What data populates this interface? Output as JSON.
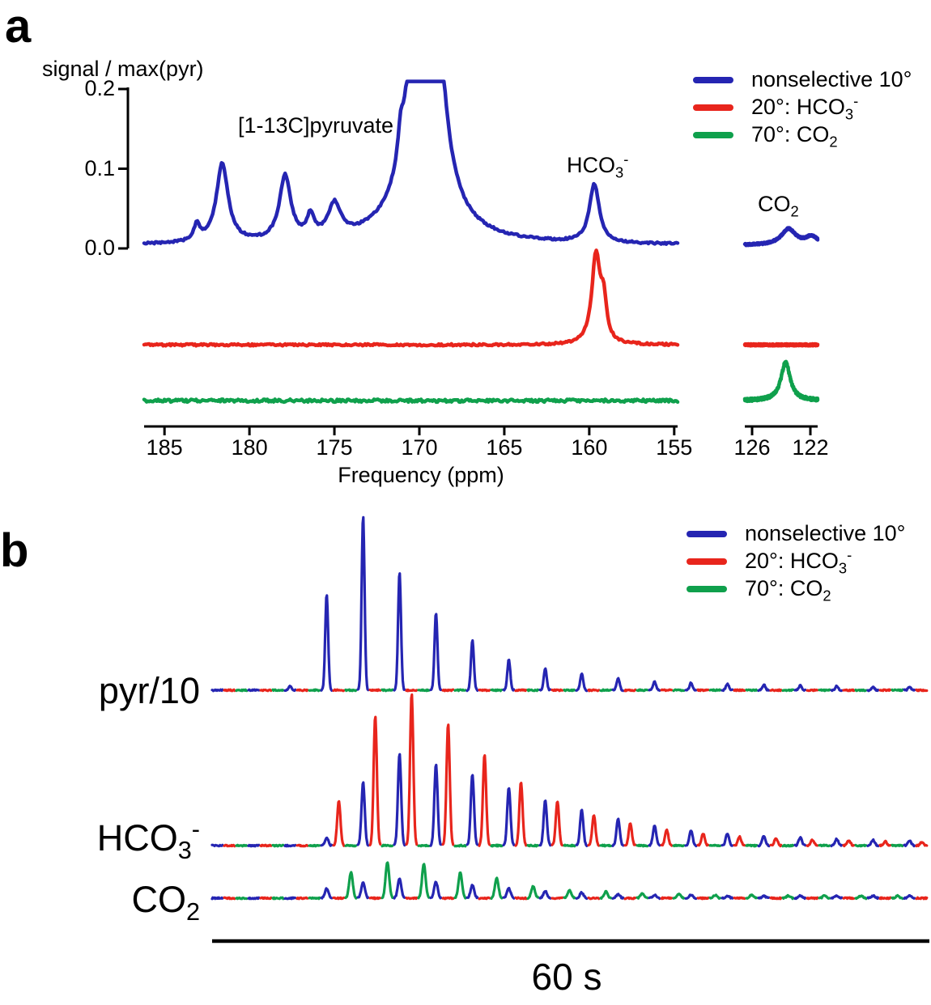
{
  "labels": {
    "panel_a": "a",
    "panel_b": "b"
  },
  "colors": {
    "blue": "#2525b2",
    "red": "#e8251c",
    "green": "#0fa04c",
    "axis": "#000000"
  },
  "panel_a": {
    "ylabel": "signal / max(pyr)",
    "xlabel": "Frequency (ppm)",
    "annotations": {
      "pyruvate": "[1-13C]pyruvate",
      "bicarb_pre": "HCO",
      "bicarb_sub": "3",
      "bicarb_sup": "-",
      "co2_pre": "CO",
      "co2_sub": "2"
    }
  },
  "legend": {
    "items": [
      {
        "pre": "nonselective 10°",
        "sub": "",
        "sup": "",
        "color": "#2525b2"
      },
      {
        "pre": "20°: HCO",
        "sub": "3",
        "sup": "-",
        "color": "#e8251c"
      },
      {
        "pre": "70°: CO",
        "sub": "2",
        "sup": "",
        "color": "#0fa04c"
      }
    ]
  },
  "panel_b": {
    "row_labels": [
      {
        "pre": "pyr/10",
        "sub": "",
        "sup": ""
      },
      {
        "pre": "HCO",
        "sub": "3",
        "sup": "-"
      },
      {
        "pre": "CO",
        "sub": "2",
        "sup": ""
      }
    ],
    "time_label": "60 s"
  },
  "chart_data": [
    {
      "panel": "a",
      "type": "line",
      "title": "Spectra of hyperpolarized [1-13C]pyruvate, bicarbonate and CO2",
      "xlabel": "Frequency (ppm)",
      "ylabel": "signal / max(pyr)",
      "x_axis_main": {
        "range": [
          186.2,
          154.8
        ],
        "ticks": [
          {
            "v": 185,
            "t": "185"
          },
          {
            "v": 180,
            "t": "180"
          },
          {
            "v": 175,
            "t": "175"
          },
          {
            "v": 170,
            "t": "170"
          },
          {
            "v": 165,
            "t": "165"
          },
          {
            "v": 160,
            "t": "160"
          },
          {
            "v": 155,
            "t": "155"
          }
        ]
      },
      "x_axis_inset": {
        "range": [
          126.5,
          121.5
        ],
        "ticks": [
          {
            "v": 126,
            "t": "126"
          },
          {
            "v": 122,
            "t": "122"
          }
        ]
      },
      "y_axis": {
        "range": [
          0,
          0.2
        ],
        "ticks": [
          {
            "v": 0.2,
            "t": "0.2"
          },
          {
            "v": 0.1,
            "t": "0.1"
          },
          {
            "v": 0,
            "t": "0.0"
          }
        ]
      },
      "series": [
        {
          "name": "nonselective 10°",
          "color_key": "blue",
          "baseline_offset": 0,
          "baseline_lift": 0.004,
          "clip_max": 0.2095,
          "noise_amp": 0.0012,
          "peaks_main_ppm_h_w": [
            [
              183.1,
              0.02,
              0.22
            ],
            [
              181.6,
              0.099,
              0.42
            ],
            [
              177.9,
              0.081,
              0.4
            ],
            [
              176.4,
              0.027,
              0.25
            ],
            [
              175.0,
              0.041,
              0.45
            ],
            [
              171.1,
              0.035,
              0.18
            ],
            [
              169.8,
              0.09,
              1.3
            ],
            [
              169.6,
              1.2,
              0.42
            ],
            [
              159.7,
              0.073,
              0.35
            ]
          ],
          "peaks_inset_ppm_h_w": [
            [
              123.5,
              0.02,
              0.6
            ],
            [
              121.9,
              0.01,
              0.5
            ]
          ]
        },
        {
          "name": "20°: HCO3-",
          "color_key": "red",
          "baseline_offset": -0.123,
          "baseline_lift": 0.002,
          "clip_max": 1,
          "noise_amp": 0.0012,
          "peaks_main_ppm_h_w": [
            [
              159.6,
              0.112,
              0.3
            ],
            [
              159.15,
              0.045,
              0.2
            ]
          ],
          "peaks_inset_ppm_h_w": []
        },
        {
          "name": "70°: CO2",
          "color_key": "green",
          "baseline_offset": -0.193,
          "baseline_lift": 0.002,
          "clip_max": 1,
          "noise_amp": 0.0018,
          "peaks_main_ppm_h_w": [],
          "peaks_inset_ppm_h_w": [
            [
              123.7,
              0.048,
              0.38
            ]
          ]
        }
      ]
    },
    {
      "panel": "b",
      "type": "line",
      "title": "Time courses of pyruvate, bicarbonate and CO2 signals",
      "x_axis": {
        "label": "60 s",
        "total_seconds": 60
      },
      "acquisition_cycle": [
        "nonselective 10°",
        "20°: HCO3-",
        "70°: CO2"
      ],
      "cycle_color_keys": [
        "blue",
        "red",
        "green"
      ],
      "rows": [
        {
          "name": "pyr/10",
          "spike_heights": {
            "blue": [
              0,
              0,
              5,
              118,
              215,
              145,
              95,
              62,
              38,
              27,
              21,
              15,
              11,
              9,
              8,
              7,
              6,
              5,
              4,
              4
            ],
            "red": [
              0,
              0,
              0,
              0,
              0,
              0,
              0,
              0,
              0,
              0,
              0,
              0,
              0,
              0,
              0,
              0,
              0,
              0,
              0,
              0
            ],
            "green": [
              0,
              0,
              0,
              0,
              0,
              0,
              0,
              0,
              0,
              0,
              0,
              0,
              0,
              0,
              0,
              0,
              0,
              0,
              0,
              0
            ]
          }
        },
        {
          "name": "HCO3-",
          "spike_heights": {
            "blue": [
              0,
              0,
              0,
              10,
              78,
              113,
              100,
              88,
              72,
              56,
              44,
              33,
              25,
              19,
              15,
              12,
              10,
              8,
              7,
              6
            ],
            "red": [
              0,
              0,
              0,
              55,
              160,
              188,
              150,
              112,
              78,
              55,
              38,
              27,
              20,
              15,
              11,
              9,
              7,
              6,
              5,
              4
            ],
            "green": [
              0,
              0,
              0,
              0,
              0,
              0,
              0,
              0,
              0,
              0,
              0,
              0,
              0,
              0,
              0,
              0,
              0,
              0,
              0,
              0
            ]
          }
        },
        {
          "name": "CO2",
          "spike_heights": {
            "blue": [
              0,
              0,
              0,
              12,
              20,
              24,
              20,
              16,
              12,
              9,
              7,
              5,
              4,
              4,
              3,
              3,
              3,
              3,
              3,
              3
            ],
            "red": [
              0,
              0,
              0,
              0,
              0,
              0,
              0,
              0,
              0,
              0,
              0,
              0,
              0,
              0,
              0,
              0,
              0,
              0,
              0,
              0
            ],
            "green": [
              0,
              0,
              0,
              32,
              45,
              42,
              32,
              25,
              15,
              10,
              8,
              6,
              5,
              4,
              4,
              3,
              3,
              3,
              3,
              3
            ]
          }
        }
      ]
    }
  ]
}
